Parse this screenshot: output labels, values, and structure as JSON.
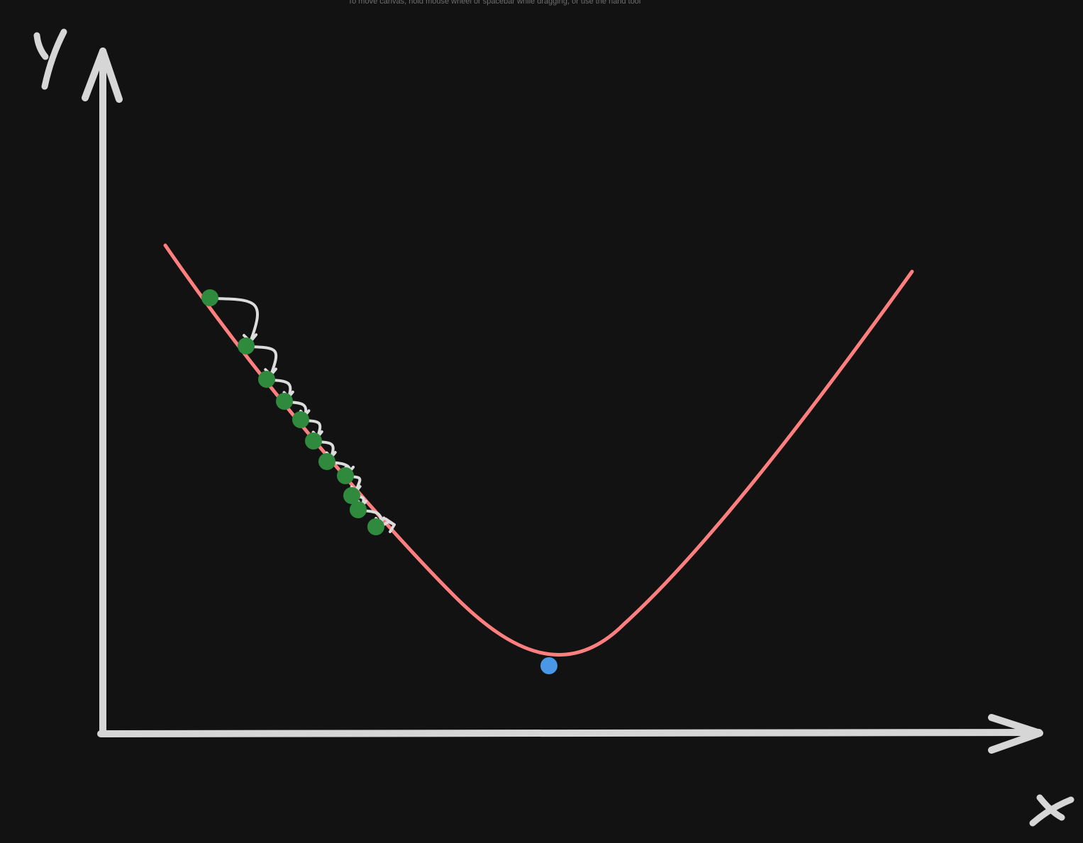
{
  "canvas": {
    "hint_text": "To move canvas, hold mouse wheel or spacebar while dragging, or use the hand tool",
    "background_color": "#121212"
  },
  "axes": {
    "x_label": "x",
    "y_label": "y",
    "color": "#d6d6d6"
  },
  "curve": {
    "color": "#ff7f7f",
    "shape": "parabola"
  },
  "descent_steps": {
    "color": "#2f8a3e",
    "count": 10
  },
  "minimum_point": {
    "color": "#4a97e6"
  },
  "step_arrows": {
    "color": "#dcdcdc",
    "count": 9
  }
}
